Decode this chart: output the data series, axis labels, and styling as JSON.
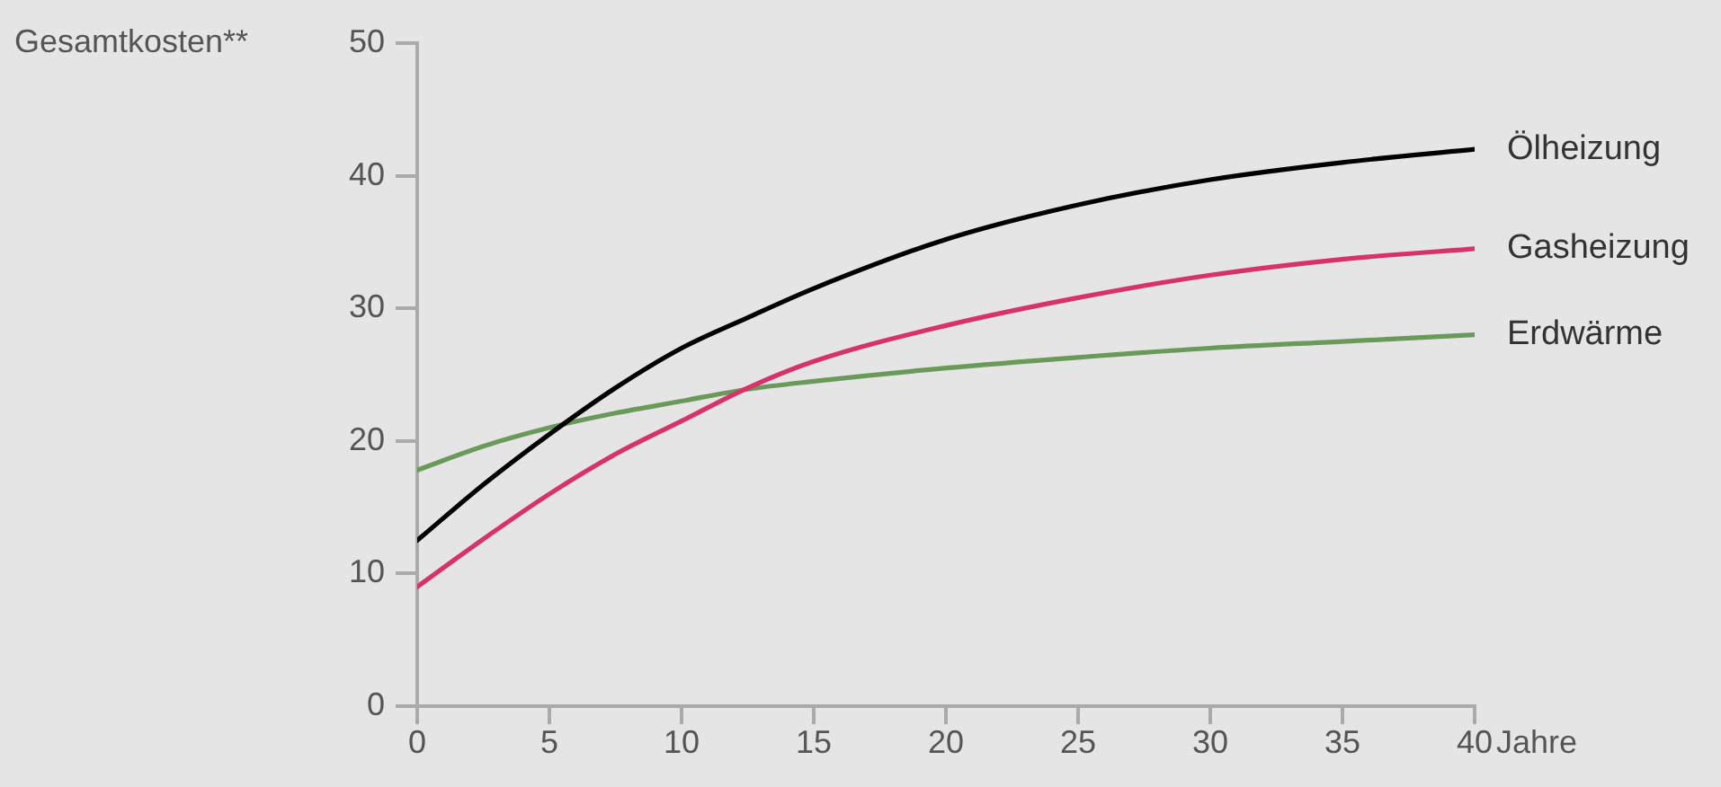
{
  "chart_data": {
    "type": "line",
    "ylabel": "Gesamtkosten**",
    "xlabel": "Jahre",
    "x": [
      0,
      2.5,
      5,
      7.5,
      10,
      12.5,
      15,
      20,
      25,
      30,
      35,
      40
    ],
    "xlim": [
      0,
      40
    ],
    "xticks": [
      0,
      5,
      10,
      15,
      20,
      25,
      30,
      35,
      40
    ],
    "ylim": [
      0,
      50
    ],
    "yticks": [
      0,
      10,
      20,
      30,
      40,
      50
    ],
    "grid": false,
    "legend": false,
    "marker": "none",
    "line_style": "solid",
    "series": [
      {
        "name": "Ölheizung",
        "color": "#000000",
        "values": [
          12.5,
          16.7,
          20.5,
          24,
          27,
          29.3,
          31.5,
          35.2,
          37.8,
          39.7,
          41,
          42
        ]
      },
      {
        "name": "Gasheizung",
        "color": "#d6336c",
        "values": [
          9,
          12.6,
          16,
          19,
          21.5,
          24,
          26,
          28.7,
          30.8,
          32.5,
          33.7,
          34.5
        ]
      },
      {
        "name": "Erdwärme",
        "color": "#6a9a5a",
        "values": [
          17.8,
          19.6,
          21,
          22.1,
          23,
          23.9,
          24.5,
          25.5,
          26.3,
          27,
          27.5,
          28
        ]
      }
    ]
  }
}
